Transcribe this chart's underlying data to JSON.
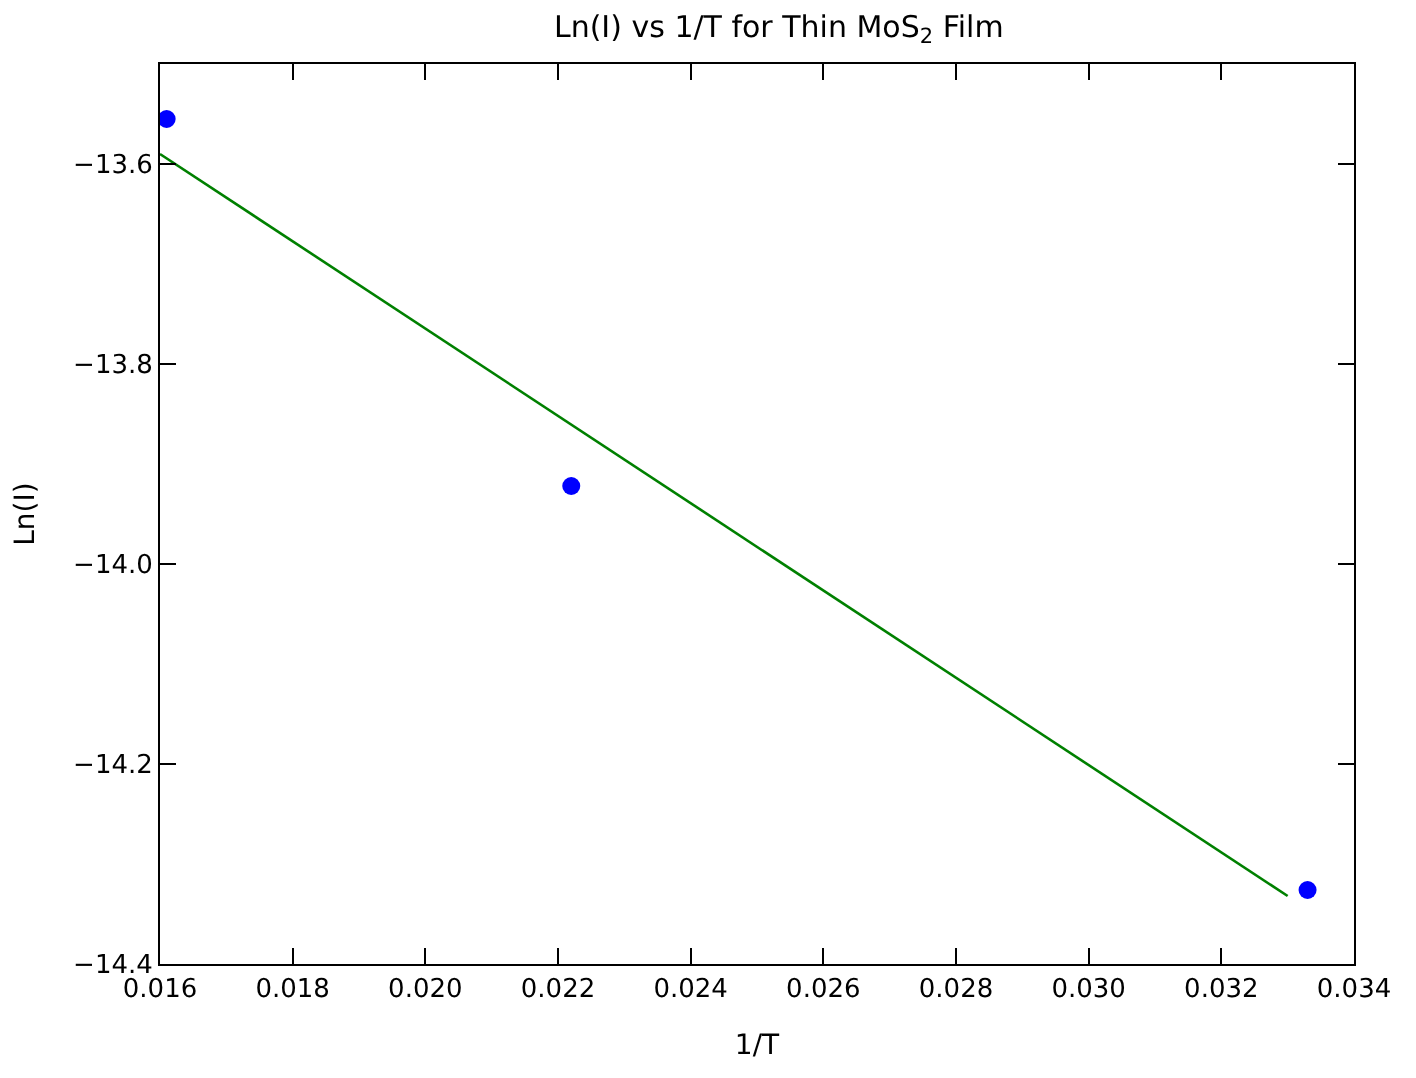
{
  "chart_data": {
    "type": "scatter",
    "title": "Ln(I) vs 1/T for Thin MoS$_{2}$ Film",
    "xlabel": "1/T",
    "ylabel": "Ln(I)",
    "xlim": [
      0.016,
      0.034
    ],
    "xticks": [
      0.016,
      0.018,
      {
        "value": 0.02,
        "label": "0.020"
      },
      0.022,
      0.024,
      0.026,
      0.028,
      {
        "value": 0.03,
        "label": "0.030"
      },
      0.032,
      0.034
    ],
    "ylim": [
      -14.4,
      -13.5
    ],
    "yticks": [
      -14.4,
      -14.2,
      {
        "value": -14,
        "label": "−14.0"
      },
      -13.8,
      -13.6
    ],
    "grid": false,
    "legend": false,
    "series": [
      {
        "color": "#0000ff",
        "marker": "circle",
        "x": [
          0.0161,
          0.0222,
          0.0333
        ],
        "values": [
          -13.555,
          -13.922,
          -14.326
        ]
      },
      {
        "type": "line",
        "color": "#008000",
        "marker": "none",
        "x": [
          0.016,
          0.033
        ],
        "values": [
          -13.59,
          -14.332
        ]
      }
    ]
  }
}
